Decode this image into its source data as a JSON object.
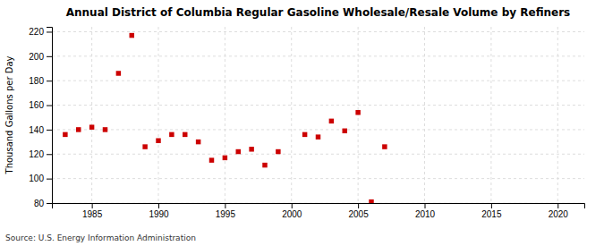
{
  "chart_data": {
    "type": "scatter",
    "title": "Annual District of Columbia Regular Gasoline Wholesale/Resale Volume by Refiners",
    "ylabel": "Thousand Gallons per Day",
    "annotations": [
      "Source: U.S. Energy Information Administration"
    ],
    "x": [
      1983,
      1984,
      1985,
      1986,
      1987,
      1988,
      1989,
      1990,
      1991,
      1992,
      1993,
      1994,
      1995,
      1996,
      1997,
      1998,
      1999,
      2001,
      2002,
      2003,
      2004,
      2005,
      2006,
      2007
    ],
    "values": [
      136,
      140,
      142,
      140,
      186,
      217,
      126,
      131,
      136,
      136,
      130,
      115,
      117,
      122,
      124,
      111,
      122,
      136,
      134,
      147,
      139,
      154,
      81,
      126
    ],
    "color": "#cc0000",
    "marker": "square",
    "xlim": [
      1982,
      2022
    ],
    "ylim": [
      80,
      224
    ],
    "xticks": [
      1985,
      1990,
      1995,
      2000,
      2005,
      2010,
      2015,
      2020
    ],
    "yticks": [
      80,
      100,
      120,
      140,
      160,
      180,
      200,
      220
    ],
    "grid": true
  }
}
